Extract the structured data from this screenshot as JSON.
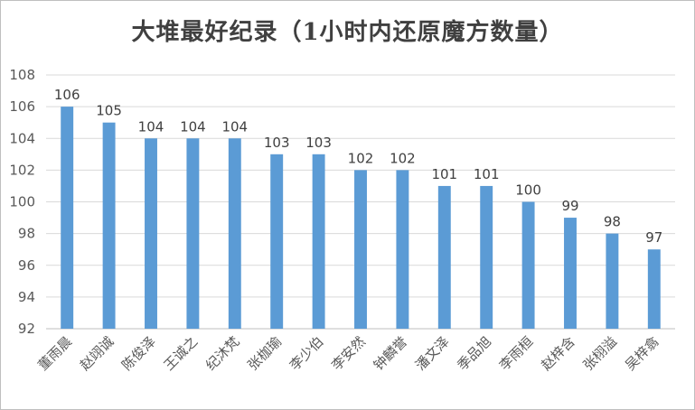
{
  "chart_data": {
    "type": "bar",
    "title": "大堆最好纪录（1小时内还原魔方数量）",
    "xlabel": "",
    "ylabel": "",
    "categories": [
      "董雨晨",
      "赵翊诚",
      "陈俊泽",
      "王诚之",
      "纪沐梵",
      "张枷瑜",
      "李少伯",
      "李安然",
      "钟麟誉",
      "潘文泽",
      "季品旭",
      "李雨桓",
      "赵梓含",
      "张栩溢",
      "吴梓翕"
    ],
    "values": [
      106,
      105,
      104,
      104,
      104,
      103,
      103,
      102,
      102,
      101,
      101,
      100,
      99,
      98,
      97
    ],
    "ylim": [
      92,
      108
    ],
    "yticks": [
      92,
      94,
      96,
      98,
      100,
      102,
      104,
      106,
      108
    ],
    "grid": true,
    "data_labels": true,
    "bar_color": "#5b9bd5"
  }
}
